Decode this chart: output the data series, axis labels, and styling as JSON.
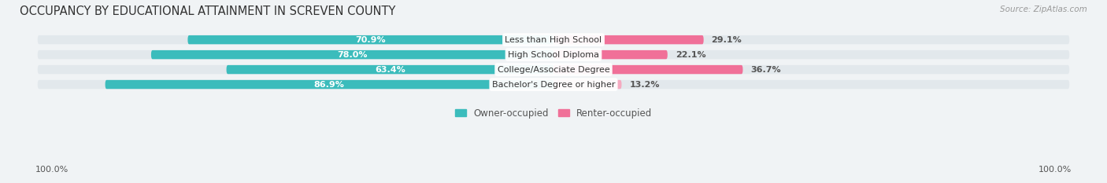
{
  "title": "OCCUPANCY BY EDUCATIONAL ATTAINMENT IN SCREVEN COUNTY",
  "source": "Source: ZipAtlas.com",
  "categories": [
    "Less than High School",
    "High School Diploma",
    "College/Associate Degree",
    "Bachelor's Degree or higher"
  ],
  "owner_values": [
    70.9,
    78.0,
    63.4,
    86.9
  ],
  "renter_values": [
    29.1,
    22.1,
    36.7,
    13.2
  ],
  "owner_color": "#3bbcbc",
  "renter_colors": [
    "#f07098",
    "#f07098",
    "#f07098",
    "#f5aac0"
  ],
  "bar_bg_color": "#e2e8ec",
  "title_fontsize": 10.5,
  "label_fontsize": 8.0,
  "tick_fontsize": 8.0,
  "source_fontsize": 7.5,
  "legend_fontsize": 8.5,
  "axis_label_left": "100.0%",
  "axis_label_right": "100.0%",
  "figsize": [
    14.06,
    2.33
  ],
  "dpi": 100
}
